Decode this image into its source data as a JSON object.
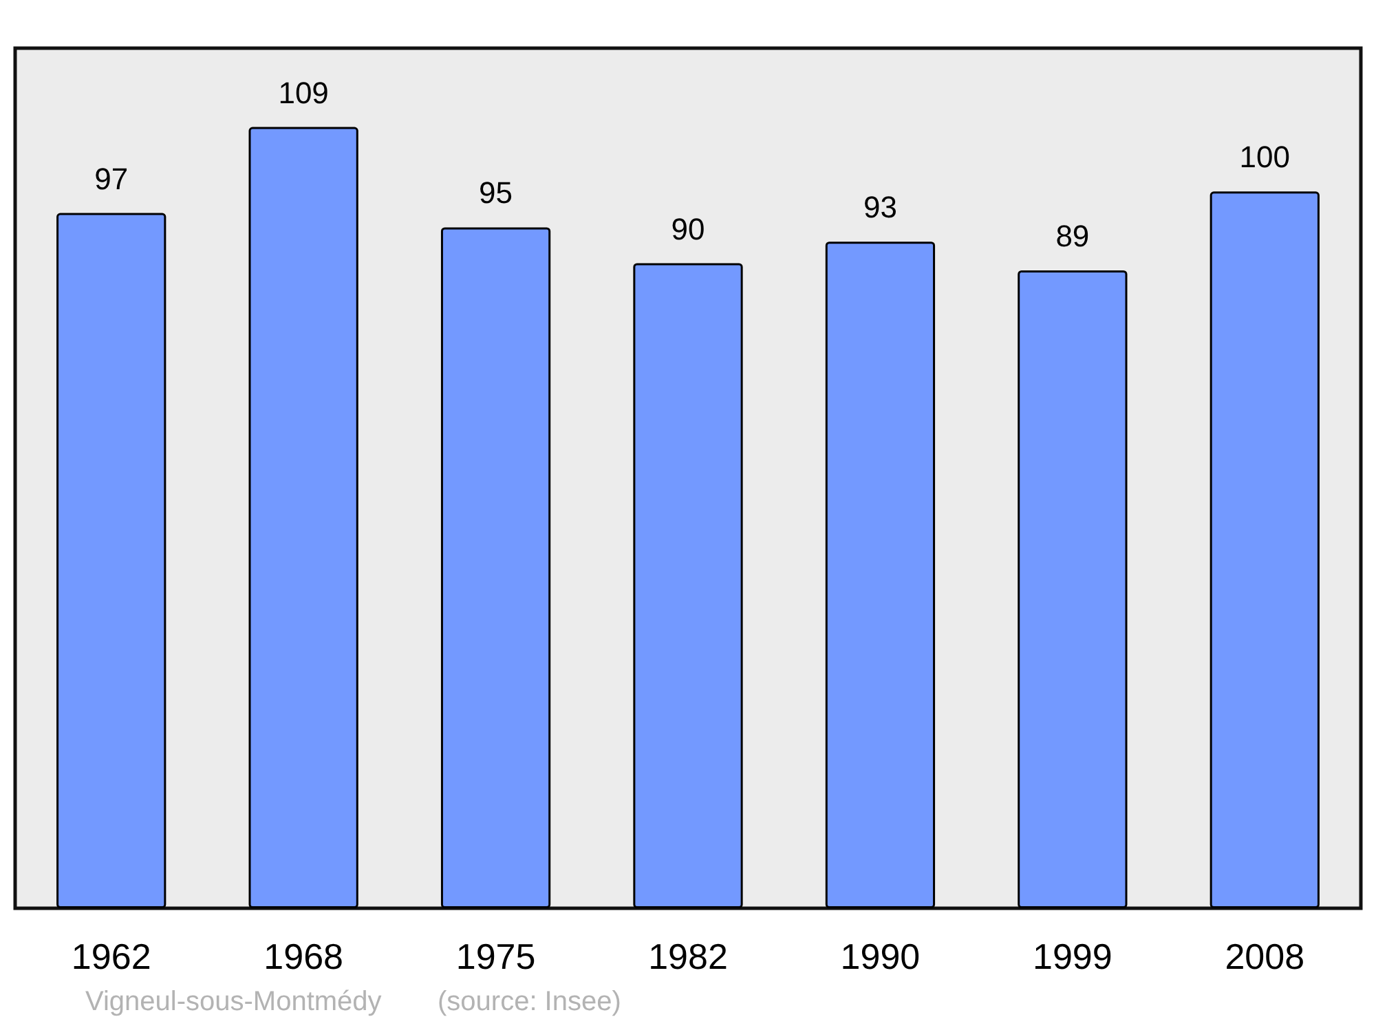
{
  "chart_data": {
    "type": "bar",
    "categories": [
      "1962",
      "1968",
      "1975",
      "1982",
      "1990",
      "1999",
      "2008"
    ],
    "values": [
      97,
      109,
      95,
      90,
      93,
      89,
      100
    ],
    "color": "#7399ff",
    "ylim": [
      0,
      120
    ],
    "data_labels": true,
    "annotations": [
      "Vigneul-sous-Montmédy",
      "(source: Insee)"
    ]
  }
}
